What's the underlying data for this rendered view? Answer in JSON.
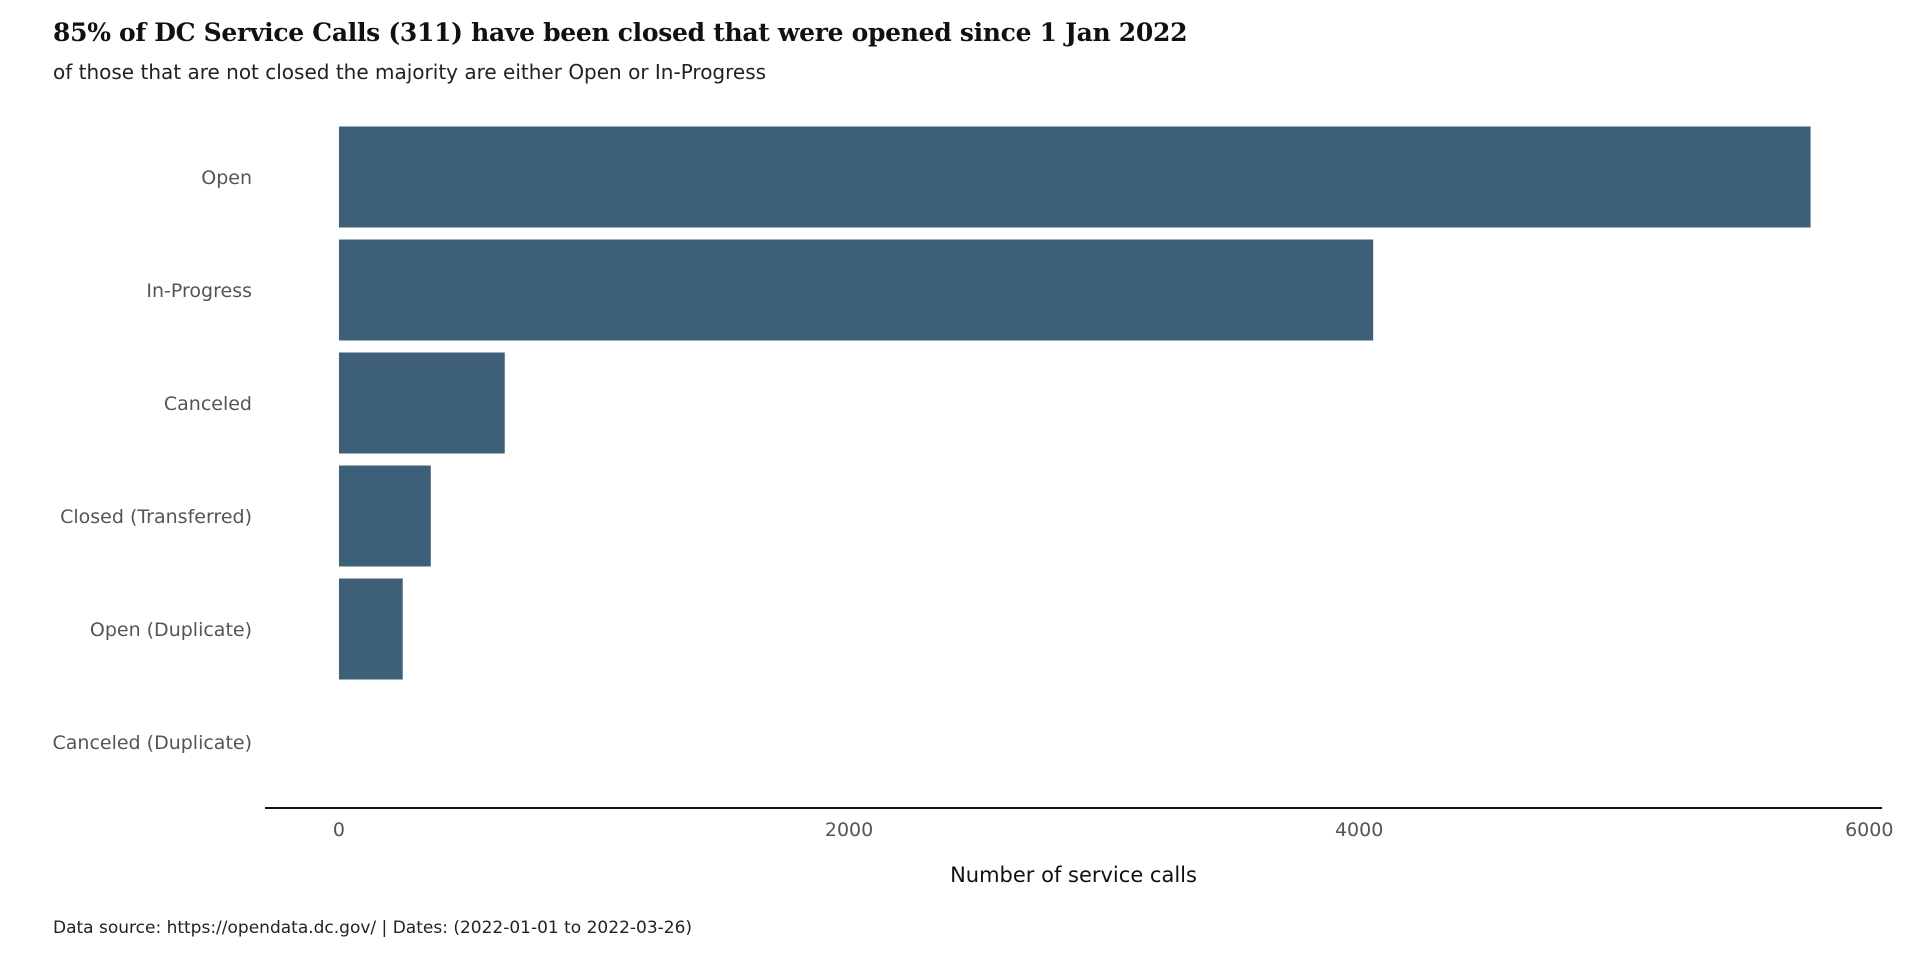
{
  "chart_data": {
    "type": "bar",
    "orientation": "horizontal",
    "title": "85% of DC Service Calls (311) have been closed that were opened since 1  Jan 2022",
    "subtitle": "of those that are not  closed  the majority  are  either Open  or In-Progress",
    "categories": [
      "Open",
      "In-Progress",
      "Canceled",
      "Closed (Transferred)",
      "Open (Duplicate)",
      "Canceled (Duplicate)"
    ],
    "values": [
      5770,
      4055,
      650,
      360,
      250,
      0
    ],
    "xlabel": "Number of service calls",
    "ylabel": "",
    "xlim": [
      -290,
      6050
    ],
    "x_ticks": [
      0,
      2000,
      4000,
      6000
    ],
    "bar_color": "#3d6078",
    "grid": false,
    "caption": "Data source: https://opendata.dc.gov/ | Dates: (2022-01-01 to 2022-03-26)"
  }
}
